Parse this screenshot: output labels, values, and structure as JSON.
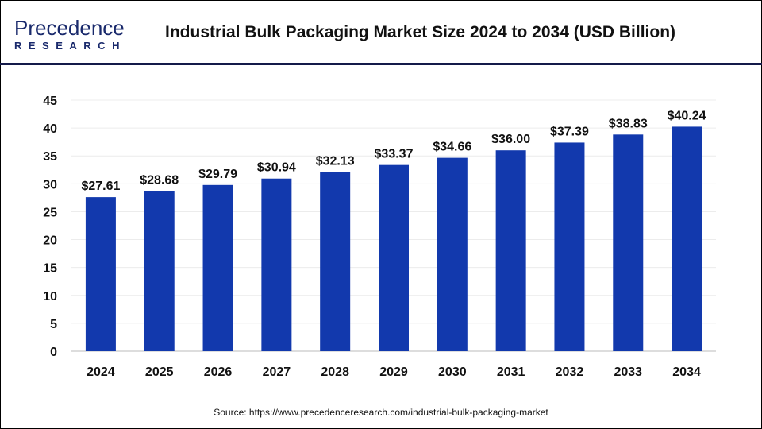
{
  "logo": {
    "line1": "Precedence",
    "line2": "RESEARCH"
  },
  "title": "Industrial Bulk Packaging Market Size 2024 to 2034 (USD Billion)",
  "source": "Source: https://www.precedenceresearch.com/industrial-bulk-packaging-market",
  "chart_data": {
    "type": "bar",
    "title": "Industrial Bulk Packaging Market Size 2024 to 2034 (USD Billion)",
    "categories": [
      "2024",
      "2025",
      "2026",
      "2027",
      "2028",
      "2029",
      "2030",
      "2031",
      "2032",
      "2033",
      "2034"
    ],
    "values": [
      27.61,
      28.68,
      29.79,
      30.94,
      32.13,
      33.37,
      34.66,
      36.0,
      37.39,
      38.83,
      40.24
    ],
    "data_labels": [
      "$27.61",
      "$28.68",
      "$29.79",
      "$30.94",
      "$32.13",
      "$33.37",
      "$34.66",
      "$36.00",
      "$37.39",
      "$38.83",
      "$40.24"
    ],
    "ylim": [
      0,
      45
    ],
    "yticks": [
      0,
      5,
      10,
      15,
      20,
      25,
      30,
      35,
      40,
      45
    ],
    "grid": true,
    "bar_color": "#1239ad",
    "xlabel": "",
    "ylabel": ""
  }
}
